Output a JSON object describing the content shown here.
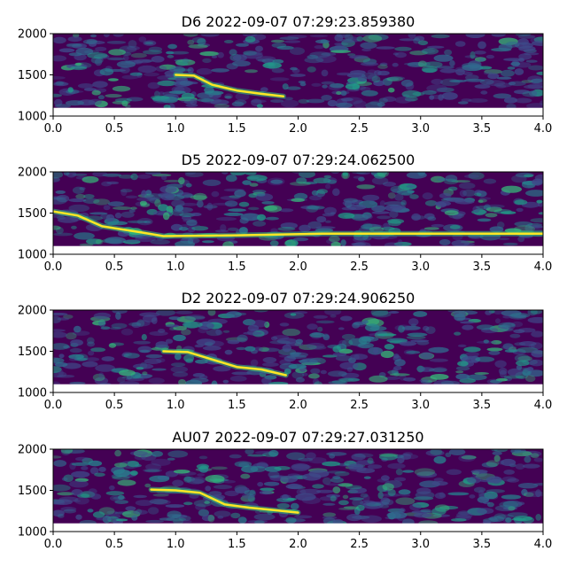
{
  "chart_data": [
    {
      "type": "heatmap",
      "title": "D6 2022-09-07 07:29:23.859380",
      "xlim": [
        0.0,
        4.0
      ],
      "ylim": [
        1000,
        2000
      ],
      "x_ticks": [
        "0.0",
        "0.5",
        "1.0",
        "1.5",
        "2.0",
        "2.5",
        "3.0",
        "3.5",
        "4.0"
      ],
      "y_ticks": [
        "1000",
        "1500",
        "2000"
      ],
      "colormap": "viridis",
      "signal_track": [
        [
          1.0,
          1500
        ],
        [
          1.15,
          1490
        ],
        [
          1.3,
          1380
        ],
        [
          1.5,
          1310
        ],
        [
          1.7,
          1270
        ],
        [
          1.88,
          1240
        ]
      ]
    },
    {
      "type": "heatmap",
      "title": "D5 2022-09-07 07:29:24.062500",
      "xlim": [
        0.0,
        4.0
      ],
      "ylim": [
        1000,
        2000
      ],
      "x_ticks": [
        "0.0",
        "0.5",
        "1.0",
        "1.5",
        "2.0",
        "2.5",
        "3.0",
        "3.5",
        "4.0"
      ],
      "y_ticks": [
        "1000",
        "1500",
        "2000"
      ],
      "colormap": "viridis",
      "signal_track": [
        [
          0.0,
          1520
        ],
        [
          0.2,
          1470
        ],
        [
          0.4,
          1340
        ],
        [
          0.7,
          1270
        ],
        [
          0.9,
          1220
        ],
        [
          1.5,
          1230
        ],
        [
          2.2,
          1250
        ],
        [
          3.0,
          1250
        ],
        [
          4.0,
          1250
        ]
      ]
    },
    {
      "type": "heatmap",
      "title": "D2 2022-09-07 07:29:24.906250",
      "xlim": [
        0.0,
        4.0
      ],
      "ylim": [
        1000,
        2000
      ],
      "x_ticks": [
        "0.0",
        "0.5",
        "1.0",
        "1.5",
        "2.0",
        "2.5",
        "3.0",
        "3.5",
        "4.0"
      ],
      "y_ticks": [
        "1000",
        "1500",
        "2000"
      ],
      "colormap": "viridis",
      "signal_track": [
        [
          0.9,
          1500
        ],
        [
          1.1,
          1490
        ],
        [
          1.3,
          1400
        ],
        [
          1.5,
          1310
        ],
        [
          1.7,
          1280
        ],
        [
          1.9,
          1210
        ]
      ]
    },
    {
      "type": "heatmap",
      "title": "AU07 2022-09-07 07:29:27.031250",
      "xlim": [
        0.0,
        4.0
      ],
      "ylim": [
        1000,
        2000
      ],
      "x_ticks": [
        "0.0",
        "0.5",
        "1.0",
        "1.5",
        "2.0",
        "2.5",
        "3.0",
        "3.5",
        "4.0"
      ],
      "y_ticks": [
        "1000",
        "1500",
        "2000"
      ],
      "colormap": "viridis",
      "signal_track": [
        [
          0.8,
          1510
        ],
        [
          1.0,
          1500
        ],
        [
          1.2,
          1470
        ],
        [
          1.4,
          1330
        ],
        [
          1.6,
          1290
        ],
        [
          1.8,
          1260
        ],
        [
          2.0,
          1230
        ]
      ]
    }
  ]
}
